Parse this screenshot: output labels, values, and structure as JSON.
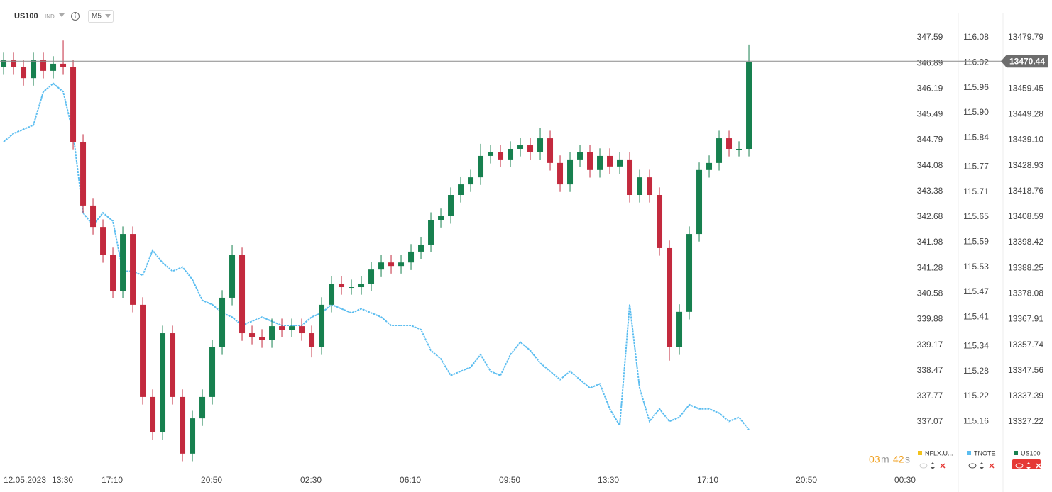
{
  "header": {
    "symbol": "US100",
    "market": "IND",
    "timeframe": "M5"
  },
  "chart_data": {
    "type": "candlestick",
    "x": [
      0,
      1,
      2,
      3,
      4,
      5,
      6,
      7,
      8,
      9,
      10,
      11,
      12,
      13,
      14,
      15,
      16,
      17,
      18,
      19,
      20,
      21,
      22,
      23,
      24,
      25,
      26,
      27,
      28,
      29,
      30,
      31,
      32,
      33,
      34,
      35,
      36,
      37,
      38,
      39,
      40,
      41,
      42,
      43,
      44,
      45,
      46,
      47,
      48,
      49,
      50,
      51,
      52,
      53,
      54,
      55,
      56,
      57,
      58,
      59,
      60,
      61,
      62,
      63,
      64,
      65,
      66,
      67,
      68,
      69,
      70,
      71,
      72,
      73,
      74,
      75
    ],
    "xlim": [
      -0.36,
      91.07
    ],
    "xticks": [
      {
        "value": 2.14,
        "label": "12.05.2023"
      },
      {
        "value": 5.93,
        "label": "13:30"
      },
      {
        "value": 10.93,
        "label": "17:10"
      },
      {
        "value": 20.93,
        "label": "20:50"
      },
      {
        "value": 30.93,
        "label": "02:30"
      },
      {
        "value": 40.93,
        "label": "06:10"
      },
      {
        "value": 50.93,
        "label": "09:50"
      },
      {
        "value": 60.86,
        "label": "13:30"
      },
      {
        "value": 70.86,
        "label": "17:10"
      },
      {
        "value": 80.79,
        "label": "20:50"
      },
      {
        "value": 90.71,
        "label": "00:30"
      }
    ],
    "ylim": [
      13307.52,
      13494.71
    ],
    "yticks": [
      13479.79,
      13459.45,
      13449.28,
      {
        "value": 13439.1,
        "label": "13439.10"
      },
      13428.93,
      13418.76,
      13408.59,
      13398.42,
      13388.25,
      13378.08,
      13367.91,
      13357.74,
      13347.56,
      13337.39,
      13327.22
    ],
    "y2lim": [
      115.04,
      116.17
    ],
    "y2ticks": [
      116.08,
      116.02,
      115.96,
      {
        "value": 115.9,
        "label": "115.90"
      },
      115.84,
      115.77,
      115.71,
      115.65,
      115.59,
      115.53,
      115.47,
      115.41,
      115.34,
      115.28,
      115.22,
      115.16
    ],
    "y3lim": [
      335.71,
      348.62
    ],
    "y3ticks": [
      347.59,
      346.89,
      346.19,
      345.49,
      344.79,
      344.08,
      343.38,
      342.68,
      341.98,
      341.28,
      340.58,
      339.88,
      339.17,
      338.47,
      337.77,
      337.07
    ],
    "last_price": 13470.44,
    "series": [
      {
        "name": "NFLX.U...",
        "color": "#f2c21b",
        "axis": "y3",
        "visible": false
      },
      {
        "name": "TNOTE",
        "color": "#5bbdf0",
        "axis": "y2",
        "visible": true,
        "values": [
          115.83,
          115.85,
          115.86,
          115.87,
          115.95,
          115.97,
          115.95,
          115.85,
          115.66,
          115.63,
          115.66,
          115.64,
          115.52,
          115.52,
          115.51,
          115.57,
          115.54,
          115.52,
          115.53,
          115.5,
          115.45,
          115.44,
          115.42,
          115.41,
          115.39,
          115.4,
          115.41,
          115.4,
          115.39,
          115.39,
          115.39,
          115.41,
          115.42,
          115.44,
          115.43,
          115.42,
          115.43,
          115.42,
          115.41,
          115.39,
          115.39,
          115.39,
          115.38,
          115.33,
          115.31,
          115.27,
          115.28,
          115.29,
          115.32,
          115.28,
          115.27,
          115.32,
          115.35,
          115.33,
          115.3,
          115.28,
          115.26,
          115.28,
          115.26,
          115.24,
          115.25,
          115.19,
          115.15,
          115.44,
          115.24,
          115.16,
          115.19,
          115.16,
          115.17,
          115.2,
          115.19,
          115.19,
          115.18,
          115.16,
          115.17,
          115.14
        ]
      },
      {
        "name": "US100",
        "color": "#17804f",
        "down_color": "#c32a3e",
        "axis": "y",
        "visible": true,
        "open": [
          13468.0,
          13470.8,
          13468.0,
          13463.7,
          13470.8,
          13466.6,
          13469.4,
          13468.0,
          13438.4,
          13413.1,
          13404.6,
          13393.4,
          13379.3,
          13401.8,
          13373.7,
          13337.1,
          13323.0,
          13362.4,
          13337.1,
          13314.6,
          13328.6,
          13337.1,
          13356.8,
          13376.5,
          13393.4,
          13362.4,
          13361.0,
          13359.6,
          13365.2,
          13363.8,
          13365.2,
          13362.4,
          13356.8,
          13373.7,
          13382.1,
          13380.7,
          13380.7,
          13382.1,
          13387.7,
          13390.5,
          13389.1,
          13390.5,
          13394.8,
          13397.6,
          13407.4,
          13408.9,
          13417.3,
          13421.5,
          13424.3,
          13432.8,
          13434.2,
          13431.4,
          13435.6,
          13437.0,
          13434.2,
          13439.8,
          13430.0,
          13421.5,
          13431.4,
          13434.2,
          13427.2,
          13432.8,
          13428.6,
          13431.4,
          13417.3,
          13424.3,
          13417.3,
          13396.2,
          13356.8,
          13370.9,
          13401.8,
          13427.2,
          13430.0,
          13439.8,
          13435.6,
          13435.6
        ],
        "high": [
          13473.8,
          13473.8,
          13471.0,
          13473.8,
          13473.8,
          13472.4,
          13478.6,
          13471.0,
          13441.4,
          13416.1,
          13407.6,
          13396.4,
          13404.8,
          13404.8,
          13376.7,
          13340.1,
          13365.4,
          13365.4,
          13340.1,
          13331.6,
          13340.1,
          13359.8,
          13379.5,
          13397.6,
          13396.4,
          13365.4,
          13364.0,
          13368.2,
          13368.2,
          13368.2,
          13368.2,
          13365.4,
          13376.7,
          13385.1,
          13385.1,
          13383.7,
          13385.1,
          13390.7,
          13393.5,
          13393.5,
          13393.5,
          13397.8,
          13400.6,
          13410.4,
          13411.9,
          13420.3,
          13424.5,
          13427.3,
          13437.6,
          13437.2,
          13437.2,
          13438.6,
          13440.0,
          13440.0,
          13444.0,
          13442.8,
          13433.0,
          13434.4,
          13437.2,
          13437.2,
          13435.8,
          13435.8,
          13434.4,
          13434.4,
          13427.3,
          13427.3,
          13420.3,
          13399.2,
          13373.9,
          13404.8,
          13430.2,
          13433.0,
          13442.8,
          13442.8,
          13438.6,
          13477.0
        ],
        "low": [
          13465.0,
          13465.0,
          13460.7,
          13460.7,
          13463.6,
          13463.6,
          13465.0,
          13435.4,
          13410.1,
          13401.6,
          13390.4,
          13376.3,
          13376.3,
          13370.7,
          13334.1,
          13320.0,
          13320.0,
          13334.1,
          13311.6,
          13311.6,
          13325.6,
          13334.1,
          13353.8,
          13373.5,
          13359.4,
          13358.0,
          13356.6,
          13356.6,
          13360.8,
          13360.8,
          13359.4,
          13352.8,
          13353.8,
          13370.7,
          13377.7,
          13377.7,
          13377.7,
          13379.1,
          13384.7,
          13386.1,
          13386.1,
          13387.5,
          13391.8,
          13394.6,
          13404.4,
          13405.9,
          13414.3,
          13418.5,
          13421.3,
          13429.8,
          13428.4,
          13428.4,
          13432.6,
          13431.2,
          13431.2,
          13427.0,
          13418.5,
          13418.5,
          13428.4,
          13424.2,
          13424.2,
          13425.6,
          13425.6,
          13414.3,
          13414.3,
          13414.3,
          13393.2,
          13351.5,
          13353.8,
          13367.9,
          13398.8,
          13424.2,
          13427.0,
          13432.6,
          13432.6,
          13432.6
        ],
        "close": [
          13470.8,
          13468.0,
          13463.7,
          13470.8,
          13466.6,
          13469.4,
          13468.0,
          13438.4,
          13413.1,
          13404.6,
          13393.4,
          13379.3,
          13401.8,
          13373.7,
          13337.1,
          13323.0,
          13362.4,
          13337.1,
          13314.6,
          13328.6,
          13337.1,
          13356.8,
          13376.5,
          13393.4,
          13362.4,
          13361.0,
          13359.6,
          13365.2,
          13363.8,
          13365.2,
          13362.4,
          13356.8,
          13373.7,
          13382.1,
          13380.7,
          13380.7,
          13382.1,
          13387.7,
          13390.5,
          13389.1,
          13390.5,
          13394.8,
          13397.6,
          13407.4,
          13408.9,
          13417.3,
          13421.5,
          13424.3,
          13432.8,
          13434.2,
          13431.4,
          13435.6,
          13437.0,
          13434.2,
          13439.8,
          13430.0,
          13421.5,
          13431.4,
          13434.2,
          13427.2,
          13432.8,
          13428.6,
          13431.4,
          13417.3,
          13424.3,
          13417.3,
          13396.2,
          13356.8,
          13370.9,
          13401.8,
          13427.2,
          13430.0,
          13439.8,
          13435.6,
          13435.6,
          13470.0
        ]
      }
    ]
  },
  "countdown": {
    "minutes": "03",
    "minutes_unit": "m",
    "seconds": "42",
    "seconds_unit": "s"
  }
}
